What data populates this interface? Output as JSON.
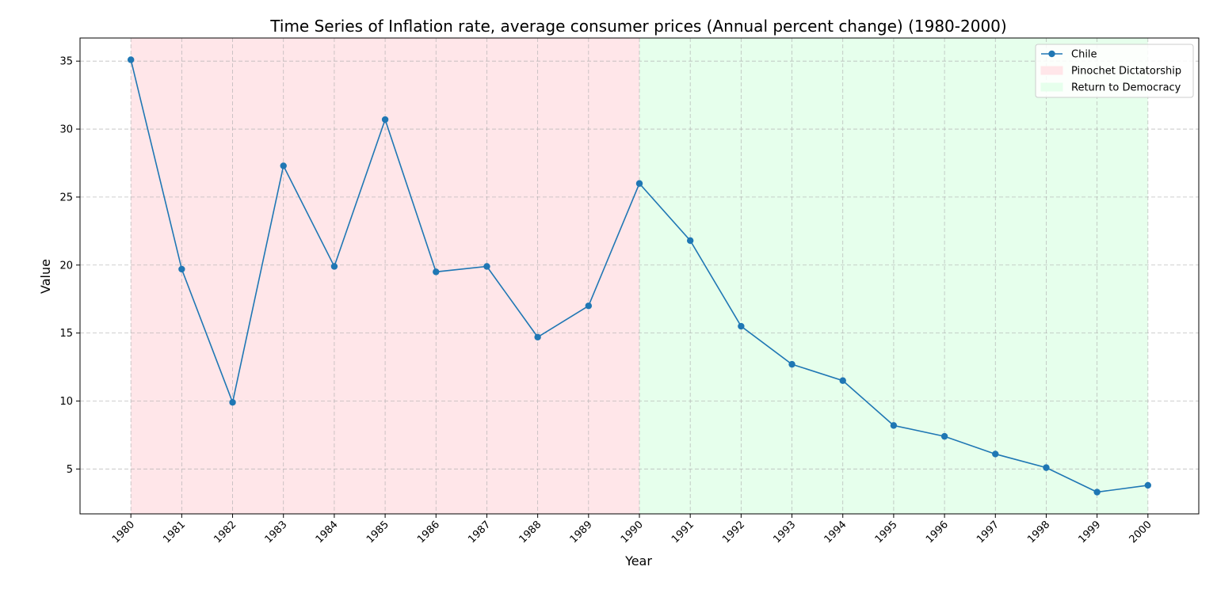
{
  "chart_data": {
    "type": "line",
    "title": "Time Series of Inflation rate, average consumer prices (Annual percent change) (1980-2000)",
    "xlabel": "Year",
    "ylabel": "Value",
    "x": [
      1980,
      1981,
      1982,
      1983,
      1984,
      1985,
      1986,
      1987,
      1988,
      1989,
      1990,
      1991,
      1992,
      1993,
      1994,
      1995,
      1996,
      1997,
      1998,
      1999,
      2000
    ],
    "x_tick_labels": [
      "1980",
      "1981",
      "1982",
      "1983",
      "1984",
      "1985",
      "1986",
      "1987",
      "1988",
      "1989",
      "1990",
      "1991",
      "1992",
      "1993",
      "1994",
      "1995",
      "1996",
      "1997",
      "1998",
      "1999",
      "2000"
    ],
    "xlim": [
      1979,
      2001
    ],
    "ylim": [
      1.7,
      36.7
    ],
    "y_ticks": [
      5,
      10,
      15,
      20,
      25,
      30,
      35
    ],
    "y_tick_labels": [
      "5",
      "10",
      "15",
      "20",
      "25",
      "30",
      "35"
    ],
    "grid": true,
    "legend_position": "top-right",
    "series": [
      {
        "name": "Chile",
        "color": "#1f77b4",
        "marker": "circle",
        "values": [
          35.1,
          19.7,
          9.9,
          27.3,
          19.9,
          30.7,
          19.5,
          19.9,
          14.7,
          17.0,
          26.0,
          21.8,
          15.5,
          12.7,
          11.5,
          8.2,
          7.4,
          6.1,
          5.1,
          3.3,
          3.8
        ]
      }
    ],
    "shaded_regions": [
      {
        "label": "Pinochet Dictatorship",
        "start": 1980,
        "end": 1990,
        "color": "#ffe6e9"
      },
      {
        "label": "Return to Democracy",
        "start": 1990,
        "end": 2000,
        "color": "#e6ffec"
      }
    ]
  }
}
